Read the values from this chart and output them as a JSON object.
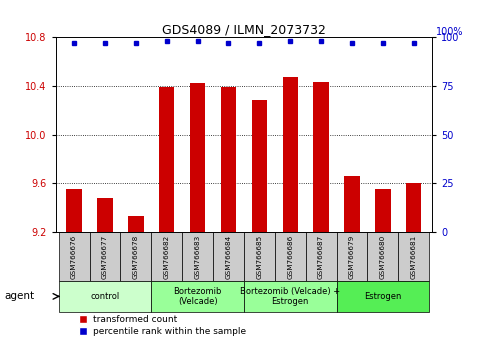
{
  "title": "GDS4089 / ILMN_2073732",
  "samples": [
    "GSM766676",
    "GSM766677",
    "GSM766678",
    "GSM766682",
    "GSM766683",
    "GSM766684",
    "GSM766685",
    "GSM766686",
    "GSM766687",
    "GSM766679",
    "GSM766680",
    "GSM766681"
  ],
  "bar_values": [
    9.55,
    9.48,
    9.33,
    10.39,
    10.42,
    10.39,
    10.28,
    10.47,
    10.43,
    9.66,
    9.55,
    9.6
  ],
  "percentile_values": [
    97,
    97,
    97,
    98,
    98,
    97,
    97,
    98,
    98,
    97,
    97,
    97
  ],
  "bar_color": "#cc0000",
  "dot_color": "#0000cc",
  "ylim_left": [
    9.2,
    10.8
  ],
  "ylim_right": [
    0,
    100
  ],
  "yticks_left": [
    9.2,
    9.6,
    10.0,
    10.4,
    10.8
  ],
  "yticks_right": [
    0,
    25,
    50,
    75,
    100
  ],
  "grid_lines": [
    9.6,
    10.0,
    10.4
  ],
  "group_data": [
    {
      "label": "control",
      "start": 0,
      "end": 2,
      "color": "#ccffcc"
    },
    {
      "label": "Bortezomib\n(Velcade)",
      "start": 3,
      "end": 5,
      "color": "#99ff99"
    },
    {
      "label": "Bortezomib (Velcade) +\nEstrogen",
      "start": 6,
      "end": 8,
      "color": "#99ff99"
    },
    {
      "label": "Estrogen",
      "start": 9,
      "end": 11,
      "color": "#55ee55"
    }
  ],
  "agent_label": "agent",
  "legend_bar_label": "transformed count",
  "legend_dot_label": "percentile rank within the sample",
  "bg_color": "#ffffff",
  "gsm_box_color": "#cccccc",
  "bar_width": 0.5
}
